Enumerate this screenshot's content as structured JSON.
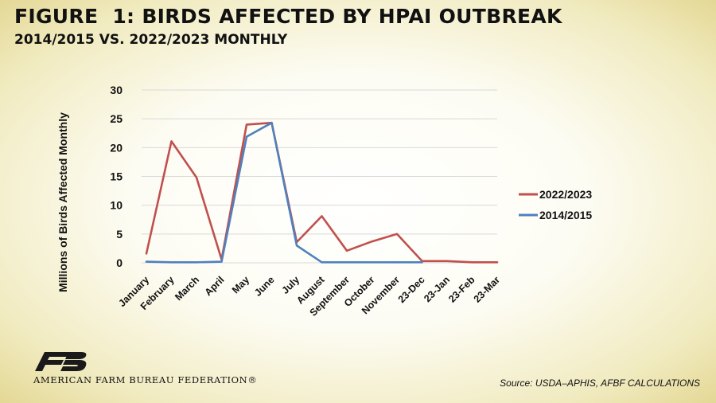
{
  "header": {
    "title": "FIGURE  1: BIRDS AFFECTED BY HPAI OUTBREAK",
    "subtitle": "2014/2015 VS. 2022/2023 MONTHLY"
  },
  "footer": {
    "organization": "AMERICAN FARM BUREAU FEDERATION®",
    "source": "Source: USDA–APHIS, AFBF CALCULATIONS"
  },
  "colors": {
    "series_2022": "#c0504d",
    "series_2014": "#4f81bd",
    "grid": "#d9d9d9",
    "logo": "#1a1a1a"
  },
  "chart_data": {
    "type": "line",
    "title": "",
    "xlabel": "",
    "ylabel": "Millions of Birds Affected Monthly",
    "ylim": [
      0,
      30
    ],
    "yticks": [
      0,
      5,
      10,
      15,
      20,
      25,
      30
    ],
    "grid": true,
    "legend_position": "right",
    "categories": [
      "January",
      "February",
      "March",
      "April",
      "May",
      "June",
      "July",
      "August",
      "September",
      "October",
      "November",
      "23-Dec",
      "23-Jan",
      "23-Feb",
      "23-Mar"
    ],
    "series": [
      {
        "name": "2022/2023",
        "color": "#c0504d",
        "values": [
          1.6,
          21.1,
          14.8,
          0.6,
          24.0,
          24.3,
          3.6,
          8.1,
          2.1,
          3.7,
          5.0,
          0.3,
          0.3,
          0.1,
          0.1
        ]
      },
      {
        "name": "2014/2015",
        "color": "#4f81bd",
        "values": [
          0.2,
          0.1,
          0.1,
          0.2,
          21.9,
          24.3,
          3.0,
          0.1,
          0.1,
          0.1,
          0.1,
          0.1,
          null,
          null,
          null
        ]
      }
    ]
  }
}
